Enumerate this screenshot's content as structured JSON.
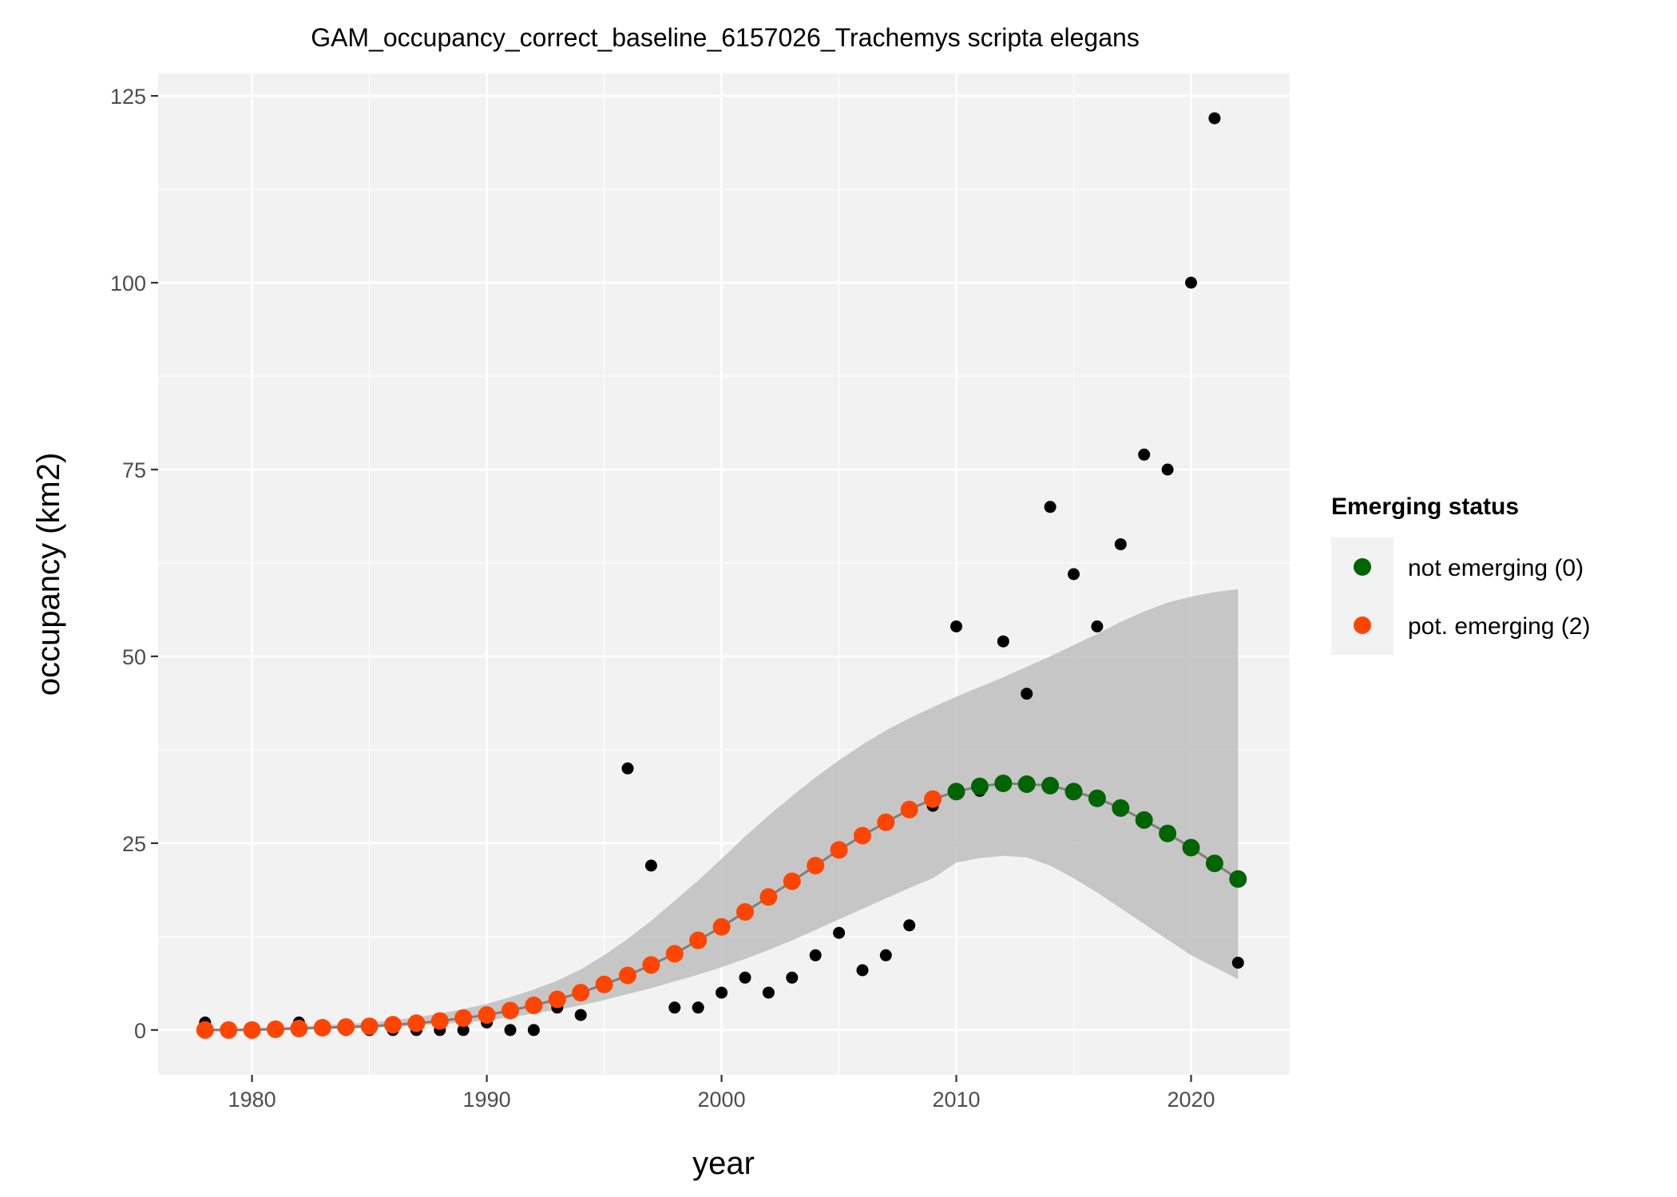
{
  "chart_data": {
    "type": "scatter",
    "title": "GAM_occupancy_correct_baseline_6157026_Trachemys scripta elegans",
    "xlabel": "year",
    "ylabel": "occupancy (km2)",
    "xlim": [
      1976,
      2024.2
    ],
    "ylim": [
      -6,
      128
    ],
    "x_ticks": [
      1980,
      1990,
      2000,
      2010,
      2020
    ],
    "x_tick_labels": [
      "1980",
      "1990",
      "2000",
      "2010",
      "2020"
    ],
    "y_ticks": [
      0,
      25,
      50,
      75,
      100,
      125
    ],
    "y_tick_labels": [
      "0",
      "25",
      "50",
      "75",
      "100",
      "125"
    ],
    "grid": true,
    "legend": {
      "title": "Emerging status",
      "position": "right",
      "entries": [
        {
          "label": "not emerging (0)",
          "color": "#006400"
        },
        {
          "label": "pot. emerging (2)",
          "color": "#ff4500"
        }
      ]
    },
    "observed": {
      "color": "#000000",
      "x": [
        1978,
        1979,
        1980,
        1981,
        1982,
        1983,
        1984,
        1985,
        1986,
        1987,
        1988,
        1989,
        1990,
        1991,
        1992,
        1993,
        1994,
        1995,
        1996,
        1997,
        1998,
        1999,
        2000,
        2001,
        2002,
        2003,
        2004,
        2005,
        2006,
        2007,
        2008,
        2009,
        2010,
        2011,
        2012,
        2013,
        2014,
        2015,
        2016,
        2017,
        2018,
        2019,
        2020,
        2021,
        2022
      ],
      "y": [
        1,
        0,
        0,
        0,
        1,
        0,
        0,
        0,
        0,
        0,
        0,
        0,
        1,
        0,
        0,
        3,
        2,
        6,
        35,
        22,
        3,
        3,
        5,
        7,
        5,
        7,
        10,
        13,
        8,
        10,
        14,
        30,
        54,
        32,
        52,
        45,
        70,
        61,
        54,
        65,
        77,
        75,
        100,
        122,
        9
      ]
    },
    "fitted": {
      "line_color": "#7f7f7f",
      "x": [
        1978,
        1979,
        1980,
        1981,
        1982,
        1983,
        1984,
        1985,
        1986,
        1987,
        1988,
        1989,
        1990,
        1991,
        1992,
        1993,
        1994,
        1995,
        1996,
        1997,
        1998,
        1999,
        2000,
        2001,
        2002,
        2003,
        2004,
        2005,
        2006,
        2007,
        2008,
        2009,
        2010,
        2011,
        2012,
        2013,
        2014,
        2015,
        2016,
        2017,
        2018,
        2019,
        2020,
        2021,
        2022
      ],
      "y": [
        0,
        0,
        0,
        0.1,
        0.2,
        0.3,
        0.4,
        0.5,
        0.7,
        0.9,
        1.2,
        1.6,
        2.0,
        2.6,
        3.3,
        4.1,
        5.0,
        6.1,
        7.3,
        8.7,
        10.2,
        12.0,
        13.8,
        15.8,
        17.8,
        19.9,
        22.0,
        24.1,
        26.0,
        27.8,
        29.5,
        30.9,
        31.9,
        32.6,
        33.0,
        32.9,
        32.7,
        31.9,
        31.0,
        29.7,
        28.1,
        26.3,
        24.4,
        22.3,
        20.2
      ],
      "status": [
        2,
        2,
        2,
        2,
        2,
        2,
        2,
        2,
        2,
        2,
        2,
        2,
        2,
        2,
        2,
        2,
        2,
        2,
        2,
        2,
        2,
        2,
        2,
        2,
        2,
        2,
        2,
        2,
        2,
        2,
        2,
        2,
        0,
        0,
        0,
        0,
        0,
        0,
        0,
        0,
        0,
        0,
        0,
        0,
        0
      ],
      "ci_color": "#bebebe",
      "ci_lower": [
        0,
        0,
        0,
        0,
        0,
        0.1,
        0.2,
        0.3,
        0.4,
        0.6,
        0.8,
        1.0,
        1.3,
        1.7,
        2.2,
        2.7,
        3.3,
        4.0,
        4.8,
        5.6,
        6.5,
        7.4,
        8.4,
        9.5,
        10.7,
        12.0,
        13.4,
        14.8,
        16.2,
        17.6,
        19.0,
        20.3,
        22.4,
        23.0,
        23.3,
        23.1,
        22.0,
        20.3,
        18.4,
        16.3,
        14.2,
        12.1,
        10.0,
        8.4,
        6.8
      ],
      "ci_upper": [
        0.2,
        0.2,
        0.3,
        0.4,
        0.5,
        0.6,
        0.8,
        1.0,
        1.3,
        1.7,
        2.2,
        2.8,
        3.5,
        4.4,
        5.4,
        6.6,
        8.1,
        10.0,
        12.2,
        14.6,
        17.3,
        20.0,
        22.9,
        25.9,
        28.7,
        31.3,
        33.8,
        36.1,
        38.2,
        40.1,
        41.7,
        43.2,
        44.6,
        45.9,
        47.2,
        48.6,
        50.0,
        51.5,
        53.0,
        54.6,
        56.0,
        57.2,
        58.0,
        58.6,
        59.0
      ]
    }
  }
}
